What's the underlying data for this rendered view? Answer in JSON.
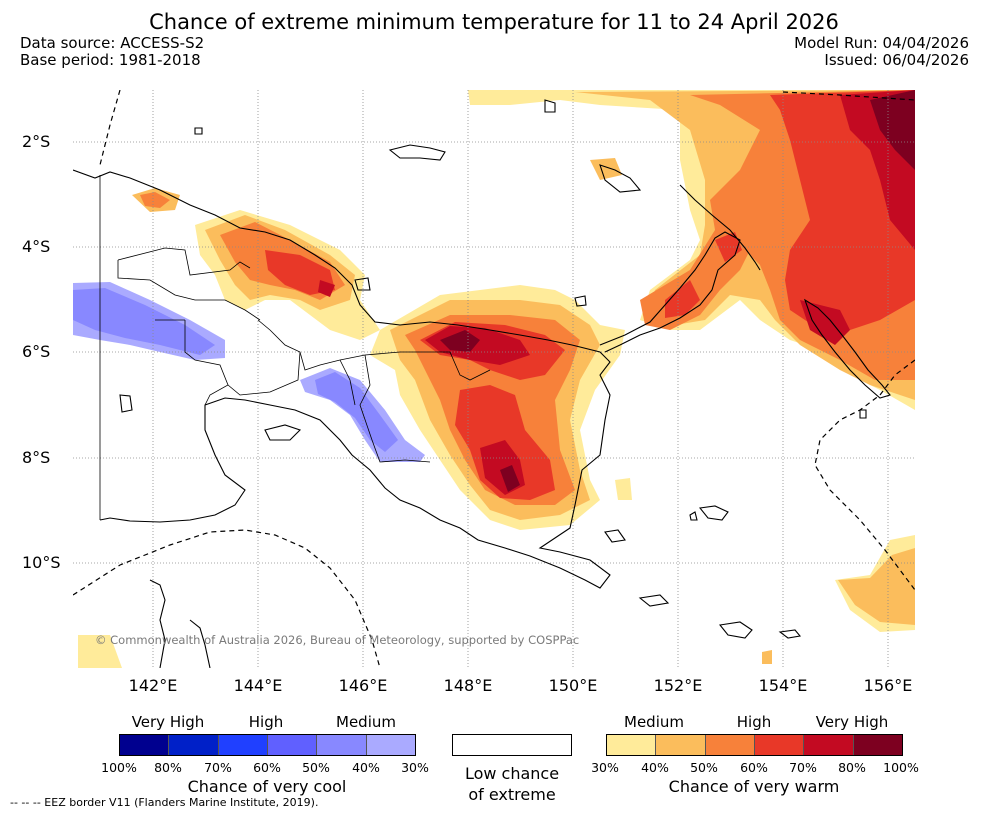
{
  "title": "Chance of extreme minimum temperature for 11 to 24 April 2026",
  "meta": {
    "data_source": "Data source: ACCESS-S2",
    "base_period": "Base period: 1981-2018",
    "model_run": "Model Run: 04/04/2026",
    "issued": "Issued: 06/04/2026"
  },
  "axes": {
    "lat_labels": [
      "2°S",
      "4°S",
      "6°S",
      "8°S",
      "10°S"
    ],
    "lon_labels": [
      "142°E",
      "144°E",
      "146°E",
      "148°E",
      "150°E",
      "152°E",
      "154°E",
      "156°E"
    ],
    "lon_range": [
      140.5,
      156.4
    ],
    "lat_range": [
      -11.6,
      -1.0
    ]
  },
  "copyright": "© Commonwealth of Australia 2026, Bureau of Meteorology, supported by COSPPac",
  "legend": {
    "cool": {
      "categories": [
        "Very High",
        "High",
        "Medium"
      ],
      "ticks": [
        "100%",
        "80%",
        "70%",
        "60%",
        "50%",
        "40%",
        "30%"
      ],
      "title": "Chance of very cool",
      "colors": [
        "#00008f",
        "#0020c8",
        "#2040ff",
        "#6060ff",
        "#8888ff",
        "#aaaaff"
      ]
    },
    "low": {
      "line1": "Low chance",
      "line2": "of extreme"
    },
    "warm": {
      "categories": [
        "Medium",
        "High",
        "Very High"
      ],
      "ticks": [
        "30%",
        "40%",
        "50%",
        "60%",
        "70%",
        "80%",
        "100%"
      ],
      "title": "Chance of very warm",
      "colors": [
        "#ffeb9a",
        "#fbbd5c",
        "#f7813a",
        "#e83828",
        "#c30a22",
        "#7d0020"
      ]
    }
  },
  "eez_note": "--  --  -- EEZ border V11 (Flanders Marine Institute, 2019)."
}
